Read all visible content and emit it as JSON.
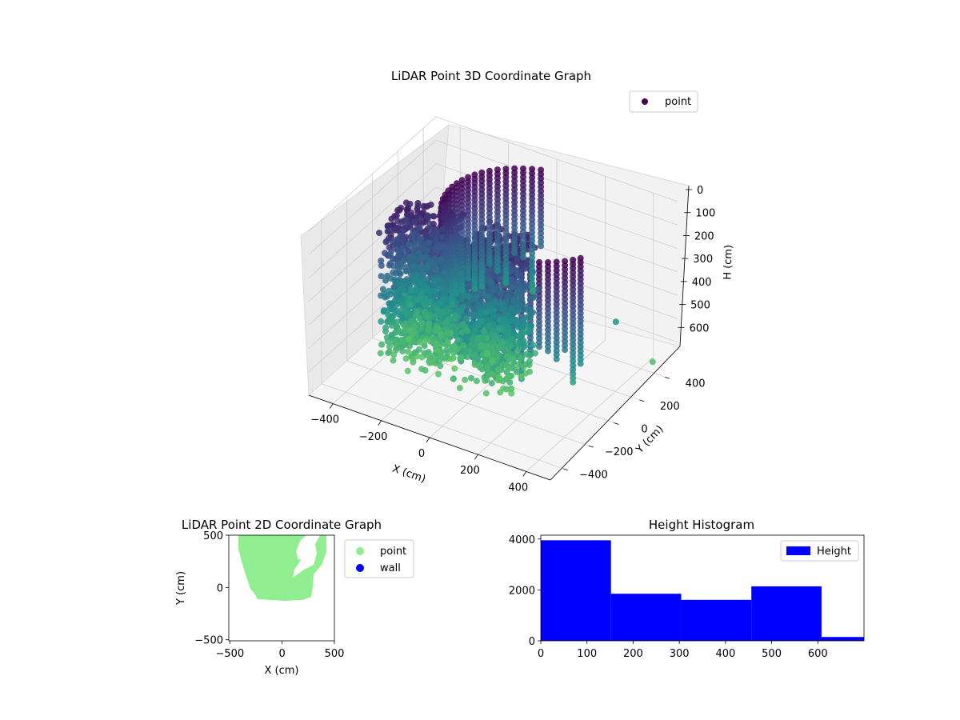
{
  "chart_data": [
    {
      "type": "scatter3d",
      "title": "LiDAR Point 3D Coordinate Graph",
      "xlabel": "X (cm)",
      "ylabel": "Y (cm)",
      "zlabel": "H (cm)",
      "xlim": [
        -500,
        500
      ],
      "ylim": [
        -500,
        500
      ],
      "zlim": [
        0,
        700
      ],
      "zaxis_inverted": true,
      "xticks": [
        "−400",
        "−200",
        "0",
        "200",
        "400"
      ],
      "yticks": [
        "−400",
        "−200",
        "0",
        "200",
        "400"
      ],
      "zticks": [
        "0",
        "100",
        "200",
        "300",
        "400",
        "500",
        "600"
      ],
      "colormap": "viridis",
      "legend": {
        "position": "top-right",
        "entries": [
          {
            "label": "point",
            "color": "#440154"
          }
        ]
      },
      "grid": true
    },
    {
      "type": "scatter",
      "title": "LiDAR Point 2D Coordinate Graph",
      "xlabel": "X (cm)",
      "ylabel": "Y (cm)",
      "xlim": [
        -510,
        500
      ],
      "ylim": [
        -510,
        500
      ],
      "xticks": [
        "−500",
        "0",
        "500"
      ],
      "yticks": [
        "−500",
        "0",
        "500"
      ],
      "series": [
        {
          "name": "point",
          "color": "#90ee90"
        },
        {
          "name": "wall",
          "color": "#0000ff"
        }
      ],
      "legend_position": "outside-right"
    },
    {
      "type": "bar",
      "title": "Height Histogram",
      "bins": [
        {
          "start": 0,
          "end": 152,
          "count": 3950
        },
        {
          "start": 152,
          "end": 304,
          "count": 1850
        },
        {
          "start": 304,
          "end": 456,
          "count": 1610
        },
        {
          "start": 456,
          "end": 608,
          "count": 2140
        },
        {
          "start": 608,
          "end": 760,
          "count": 150
        }
      ],
      "xlim": [
        0,
        700
      ],
      "ylim": [
        0,
        4150
      ],
      "xticks": [
        "0",
        "100",
        "200",
        "300",
        "400",
        "500",
        "600"
      ],
      "yticks": [
        "0",
        "2000",
        "4000"
      ],
      "color": "#0000ff",
      "legend": {
        "position": "top-right",
        "entries": [
          {
            "label": "Height",
            "color": "#0000ff"
          }
        ]
      }
    }
  ]
}
